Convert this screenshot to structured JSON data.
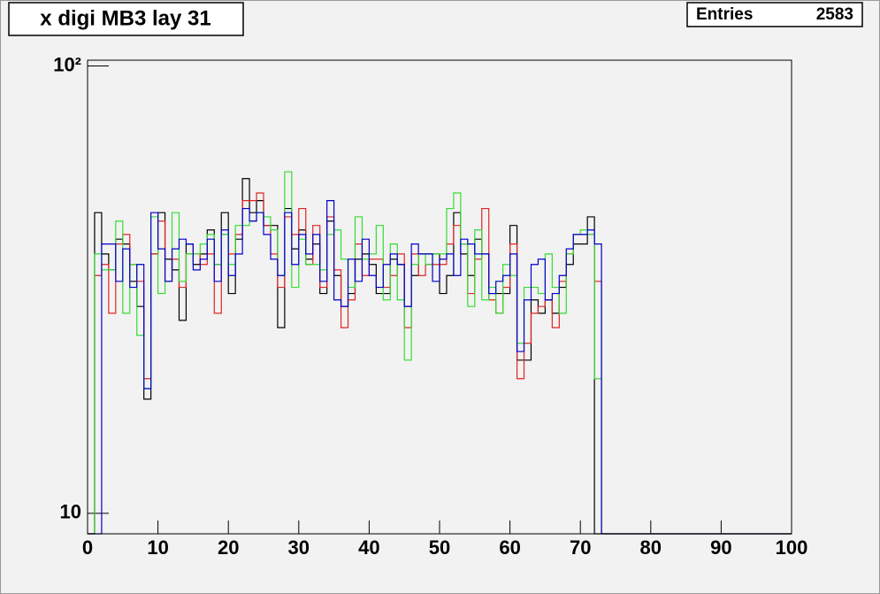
{
  "chart_data": {
    "type": "step-histogram",
    "title": "x digi MB3 lay 31",
    "stats": {
      "label": "Entries",
      "value": 2583
    },
    "xlim": [
      0,
      100
    ],
    "ylim": [
      9,
      103
    ],
    "log_y": true,
    "xticks": [
      0,
      10,
      20,
      30,
      40,
      50,
      60,
      70,
      80,
      90,
      100
    ],
    "yticks": [
      10,
      {
        "value": 100,
        "label": "10²"
      }
    ],
    "series": [
      {
        "color": "#000000",
        "values": [
          0,
          47,
          38,
          35,
          41,
          40,
          33,
          29,
          18,
          38,
          47,
          37,
          35,
          27,
          40,
          36,
          38,
          43,
          36,
          47,
          31,
          41,
          56,
          47,
          50,
          44,
          44,
          26,
          48,
          39,
          43,
          37,
          40,
          31,
          45,
          34,
          29,
          31,
          37,
          38,
          36,
          31,
          31,
          37,
          36,
          29,
          34,
          38,
          38,
          38,
          31,
          34,
          47,
          38,
          34,
          41,
          38,
          31,
          31,
          31,
          44,
          22,
          22,
          30,
          28,
          30,
          28,
          32,
          36,
          40,
          40,
          46,
          0,
          0,
          0,
          0,
          0,
          0,
          0,
          0,
          0,
          0,
          0,
          0,
          0,
          0,
          0,
          0,
          0,
          0,
          0,
          0,
          0,
          0,
          0,
          0,
          0,
          0,
          0,
          0
        ]
      },
      {
        "color": "#e02424",
        "values": [
          0,
          34,
          36,
          28,
          40,
          42,
          36,
          33,
          20,
          38,
          45,
          33,
          37,
          32,
          38,
          38,
          36,
          38,
          28,
          42,
          38,
          42,
          50,
          50,
          52,
          44,
          38,
          32,
          46,
          42,
          48,
          36,
          44,
          32,
          46,
          35,
          26,
          30,
          40,
          34,
          37,
          37,
          32,
          34,
          38,
          26,
          38,
          34,
          36,
          36,
          36,
          40,
          44,
          40,
          31,
          37,
          48,
          30,
          28,
          32,
          40,
          20,
          24,
          28,
          29,
          30,
          26,
          33,
          38,
          42,
          42,
          42,
          33,
          0,
          0,
          0,
          0,
          0,
          0,
          0,
          0,
          0,
          0,
          0,
          0,
          0,
          0,
          0,
          0,
          0,
          0,
          0,
          0,
          0,
          0,
          0,
          0,
          0,
          0,
          0
        ]
      },
      {
        "color": "#33dd33",
        "values": [
          0,
          38,
          35,
          35,
          45,
          28,
          36,
          25,
          19,
          46,
          31,
          33,
          47,
          33,
          38,
          38,
          40,
          42,
          36,
          42,
          36,
          44,
          44,
          45,
          47,
          46,
          43,
          34,
          58,
          32,
          41,
          36,
          36,
          35,
          42,
          43,
          37,
          32,
          46,
          37,
          38,
          44,
          30,
          40,
          30,
          22,
          36,
          38,
          36,
          38,
          38,
          48,
          52,
          40,
          29,
          43,
          30,
          32,
          28,
          36,
          34,
          24,
          32,
          32,
          31,
          38,
          32,
          28,
          38,
          42,
          43,
          42,
          20,
          0,
          0,
          0,
          0,
          0,
          0,
          0,
          0,
          0,
          0,
          0,
          0,
          0,
          0,
          0,
          0,
          0,
          0,
          0,
          0,
          0,
          0,
          0,
          0,
          0,
          0,
          0
        ]
      },
      {
        "color": "#0000cc",
        "values": [
          0,
          0,
          40,
          40,
          33,
          39,
          32,
          36,
          19,
          47,
          39,
          33,
          39,
          41,
          40,
          35,
          37,
          41,
          33,
          43,
          34,
          38,
          48,
          45,
          47,
          42,
          37,
          34,
          47,
          36,
          42,
          38,
          42,
          33,
          50,
          30,
          29,
          37,
          33,
          41,
          34,
          32,
          36,
          38,
          36,
          29,
          40,
          38,
          38,
          33,
          37,
          38,
          34,
          41,
          40,
          38,
          38,
          31,
          33,
          34,
          38,
          23,
          30,
          36,
          37,
          30,
          31,
          34,
          39,
          42,
          42,
          43,
          40,
          0,
          0,
          0,
          0,
          0,
          0,
          0,
          0,
          0,
          0,
          0,
          0,
          0,
          0,
          0,
          0,
          0,
          0,
          0,
          0,
          0,
          0,
          0,
          0,
          0,
          0,
          0
        ]
      }
    ]
  }
}
